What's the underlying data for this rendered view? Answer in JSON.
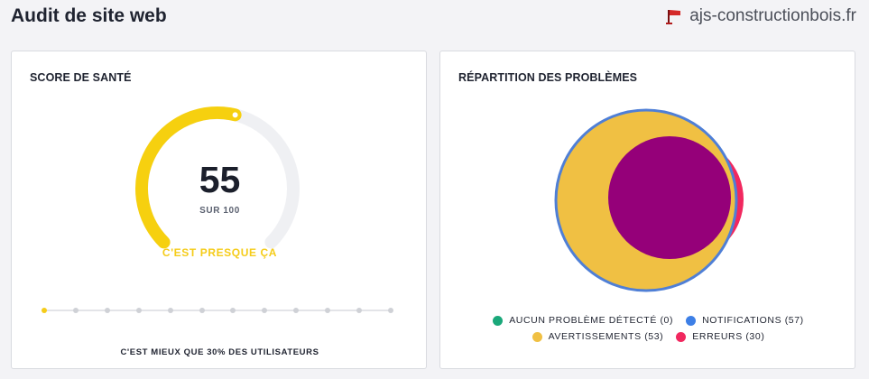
{
  "header": {
    "title": "Audit de site web",
    "site_name": "ajs-constructionbois.fr",
    "favicon_icon": "flag-favicon-icon"
  },
  "health": {
    "title": "SCORE DE SANTÉ",
    "score": "55",
    "score_sub": "SUR 100",
    "message": "C'EST PRESQUE ÇA",
    "score_fraction": 0.55,
    "colors": {
      "fill": "#f6d00f",
      "track": "#eff0f3"
    },
    "steps_total": 12,
    "steps_active": 1,
    "footnote": "C'EST MIEUX QUE 30% DES UTILISATEURS"
  },
  "issues": {
    "title": "RÉPARTITION DES PROBLÈMES",
    "legend": [
      {
        "label": "AUCUN PROBLÈME DÉTECTÉ (0)",
        "color": "#1aa87a"
      },
      {
        "label": "NOTIFICATIONS (57)",
        "color": "#3d7fe6"
      },
      {
        "label": "AVERTISSEMENTS (53)",
        "color": "#f0c043"
      },
      {
        "label": "ERREURS (30)",
        "color": "#f1285f"
      }
    ],
    "venn_colors": {
      "notifications": "#4f7fd6",
      "warnings": "#f0c043",
      "errors": "#f1285f",
      "overlap": "#950079"
    }
  }
}
